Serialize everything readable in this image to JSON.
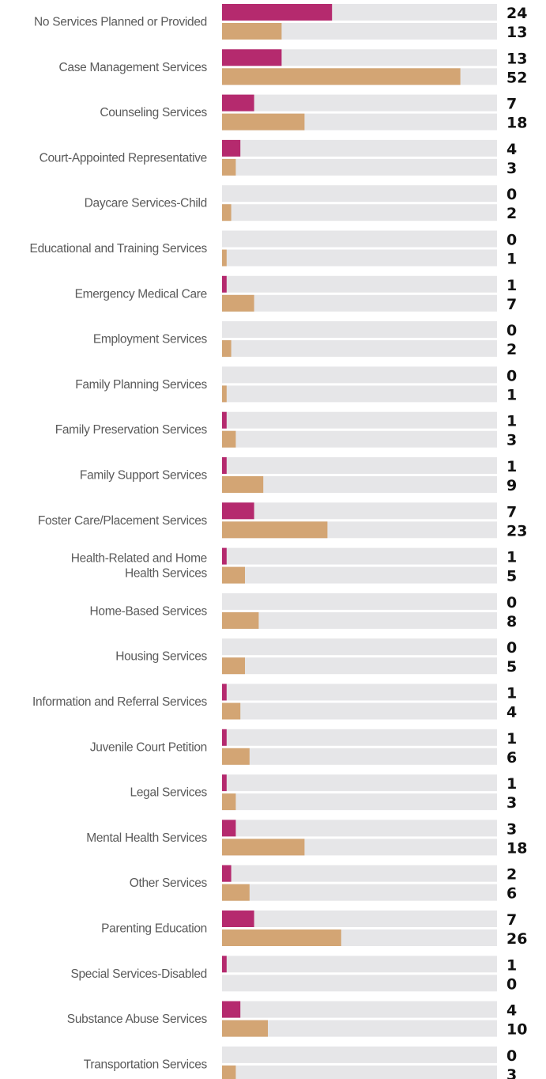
{
  "colors": {
    "track": "#e6e6e8",
    "series_a": "#b52a6e",
    "series_b": "#d3a574"
  },
  "chart_data": {
    "type": "bar",
    "orientation": "horizontal",
    "title": "",
    "xlabel": "",
    "ylabel": "",
    "xlim": [
      0,
      60
    ],
    "grid": false,
    "legend": "none",
    "categories": [
      [
        "No Services Planned or Provided"
      ],
      [
        "Case Management Services"
      ],
      [
        "Counseling Services"
      ],
      [
        "Court-Appointed Representative"
      ],
      [
        "Daycare Services-Child"
      ],
      [
        "Educational and Training Services"
      ],
      [
        "Emergency Medical Care"
      ],
      [
        "Employment Services"
      ],
      [
        "Family Planning Services"
      ],
      [
        "Family Preservation Services"
      ],
      [
        "Family Support Services"
      ],
      [
        "Foster Care/Placement Services"
      ],
      [
        "Health-Related and Home",
        "Health Services"
      ],
      [
        "Home-Based Services"
      ],
      [
        "Housing Services"
      ],
      [
        "Information and Referral Services"
      ],
      [
        "Juvenile Court Petition"
      ],
      [
        "Legal Services"
      ],
      [
        "Mental Health Services"
      ],
      [
        "Other Services"
      ],
      [
        "Parenting Education"
      ],
      [
        "Special Services-Disabled"
      ],
      [
        "Substance Abuse Services"
      ],
      [
        "Transportation Services"
      ]
    ],
    "series": [
      {
        "color": "#b52a6e",
        "values": [
          24,
          13,
          7,
          4,
          0,
          0,
          1,
          0,
          0,
          1,
          1,
          7,
          1,
          0,
          0,
          1,
          1,
          1,
          3,
          2,
          7,
          1,
          4,
          0
        ]
      },
      {
        "color": "#d3a574",
        "values": [
          13,
          52,
          18,
          3,
          2,
          1,
          7,
          2,
          1,
          3,
          9,
          23,
          5,
          8,
          5,
          4,
          6,
          3,
          18,
          6,
          26,
          0,
          10,
          3
        ]
      }
    ]
  }
}
